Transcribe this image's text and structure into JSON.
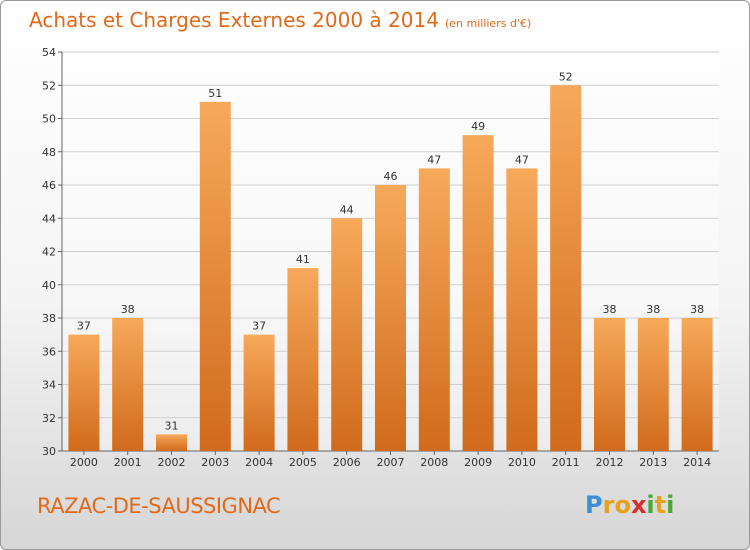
{
  "header": {
    "title": "Achats et Charges Externes 2000 à 2014",
    "unit": "(en milliers d'€)"
  },
  "footer": {
    "commune": "RAZAC-DE-SAUSSIGNAC",
    "logo": {
      "letters": [
        "P",
        "r",
        "o",
        "x",
        "i",
        "t",
        "i"
      ],
      "colors": [
        "#3a8fd6",
        "#e6a21c",
        "#e6a21c",
        "#d62d2d",
        "#4aa83a",
        "#e6a21c",
        "#4aa83a"
      ]
    }
  },
  "colors": {
    "bar_light": "#f7a95a",
    "bar_dark": "#d16a1c",
    "accent": "#e06a1a"
  },
  "chart_data": {
    "type": "bar",
    "title": "Achats et Charges Externes 2000 à 2014",
    "xlabel": "",
    "ylabel": "",
    "categories": [
      "2000",
      "2001",
      "2002",
      "2003",
      "2004",
      "2005",
      "2006",
      "2007",
      "2008",
      "2009",
      "2010",
      "2011",
      "2012",
      "2013",
      "2014"
    ],
    "values": [
      37,
      38,
      31,
      51,
      37,
      41,
      44,
      46,
      47,
      49,
      47,
      52,
      38,
      38,
      38
    ],
    "ylim": [
      30,
      54
    ],
    "yticks": [
      30,
      32,
      34,
      36,
      38,
      40,
      42,
      44,
      46,
      48,
      50,
      52,
      54
    ],
    "grid": true
  }
}
